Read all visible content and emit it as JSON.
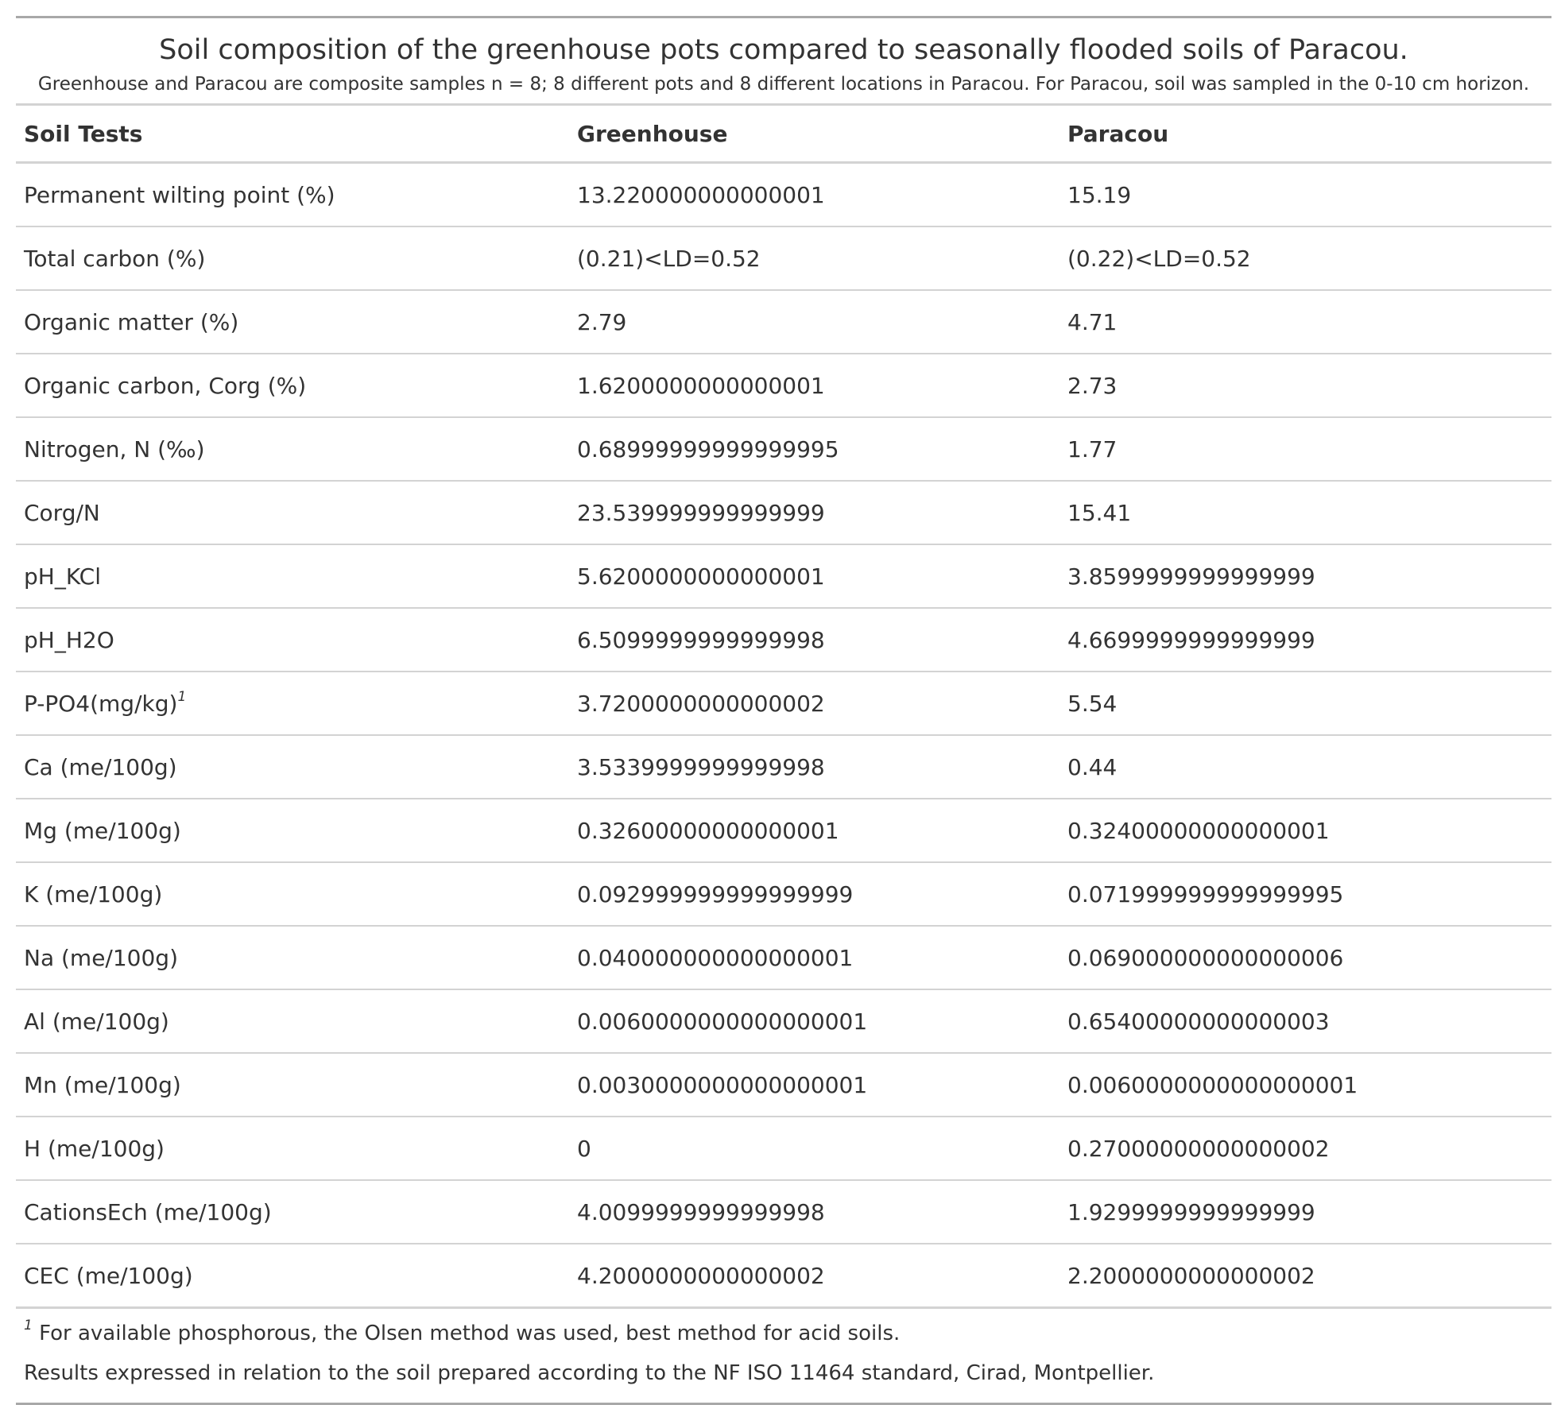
{
  "header": {
    "title": "Soil composition of the greenhouse pots compared to seasonally flooded soils of Paracou.",
    "subtitle": "Greenhouse and Paracou are composite samples n = 8; 8 different pots and 8 different locations in Paracou. For Paracou, soil was sampled in the 0-10 cm horizon."
  },
  "columns": [
    "Soil Tests",
    "Greenhouse",
    "Paracou"
  ],
  "rows": [
    {
      "test": "Permanent wilting point (%)",
      "greenhouse": "13.220000000000001",
      "paracou": "15.19"
    },
    {
      "test": "Total carbon (%)",
      "greenhouse": "(0.21)<LD=0.52",
      "paracou": "(0.22)<LD=0.52"
    },
    {
      "test": "Organic matter (%)",
      "greenhouse": "2.79",
      "paracou": "4.71"
    },
    {
      "test": "Organic carbon, Corg (%)",
      "greenhouse": "1.6200000000000001",
      "paracou": "2.73"
    },
    {
      "test": "Nitrogen, N (‰)",
      "greenhouse": "0.68999999999999995",
      "paracou": "1.77"
    },
    {
      "test": "Corg/N",
      "greenhouse": "23.539999999999999",
      "paracou": "15.41"
    },
    {
      "test": "pH_KCl",
      "greenhouse": "5.6200000000000001",
      "paracou": "3.8599999999999999"
    },
    {
      "test": "pH_H2O",
      "greenhouse": "6.5099999999999998",
      "paracou": "4.6699999999999999"
    },
    {
      "test": "P-PO4(mg/kg)",
      "footnote_mark": "1",
      "greenhouse": "3.7200000000000002",
      "paracou": "5.54"
    },
    {
      "test": "Ca (me/100g)",
      "greenhouse": "3.5339999999999998",
      "paracou": "0.44"
    },
    {
      "test": "Mg (me/100g)",
      "greenhouse": "0.32600000000000001",
      "paracou": "0.32400000000000001"
    },
    {
      "test": "K (me/100g)",
      "greenhouse": "0.092999999999999999",
      "paracou": "0.071999999999999995"
    },
    {
      "test": "Na (me/100g)",
      "greenhouse": "0.040000000000000001",
      "paracou": "0.069000000000000006"
    },
    {
      "test": "Al (me/100g)",
      "greenhouse": "0.0060000000000000001",
      "paracou": "0.65400000000000003"
    },
    {
      "test": "Mn (me/100g)",
      "greenhouse": "0.0030000000000000001",
      "paracou": "0.0060000000000000001"
    },
    {
      "test": "H (me/100g)",
      "greenhouse": "0",
      "paracou": "0.27000000000000002"
    },
    {
      "test": "CationsEch (me/100g)",
      "greenhouse": "4.0099999999999998",
      "paracou": "1.9299999999999999"
    },
    {
      "test": "CEC (me/100g)",
      "greenhouse": "4.2000000000000002",
      "paracou": "2.2000000000000002"
    }
  ],
  "footnotes": {
    "mark": "1",
    "note": " For available phosphorous, the Olsen method was used, best method for acid soils.",
    "source": "Results expressed in relation to the soil prepared according to the NF ISO 11464 standard, Cirad, Montpellier."
  }
}
